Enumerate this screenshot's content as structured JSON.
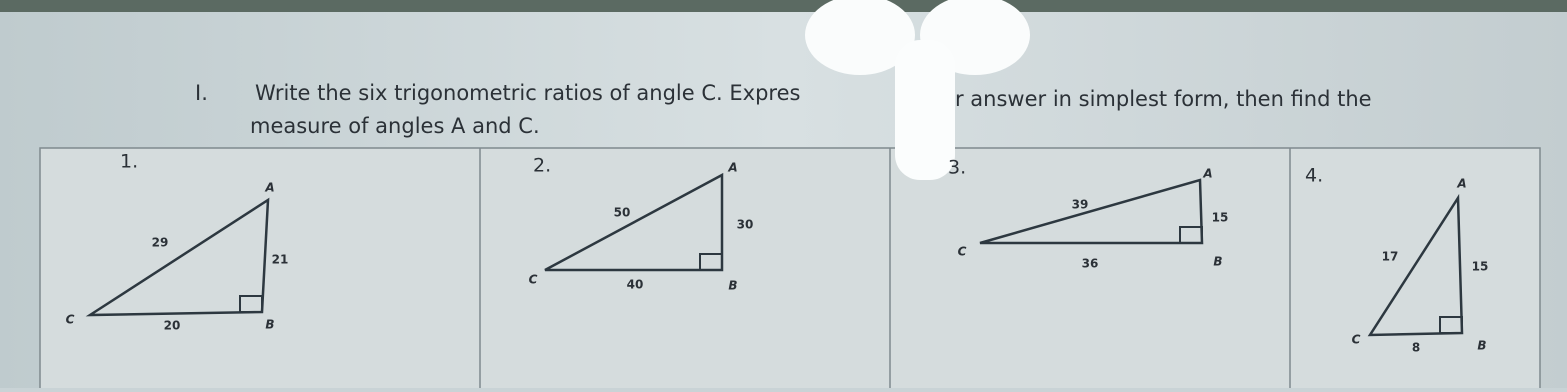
{
  "header": {
    "number": "I.",
    "lines": [
      "Write the six trigonometric ratios of angle C. Expres",
      "r answer in simplest form, then find the",
      "measure of angles A and C."
    ]
  },
  "problems": [
    {
      "label": "1.",
      "vertices": {
        "A": "A",
        "B": "B",
        "C": "C"
      },
      "sides": {
        "AC": 29,
        "AB": 21,
        "BC": 20
      }
    },
    {
      "label": "2.",
      "vertices": {
        "A": "A",
        "B": "B",
        "C": "C"
      },
      "sides": {
        "AC": 50,
        "AB": 30,
        "BC": 40
      }
    },
    {
      "label": "3.",
      "vertices": {
        "A": "A",
        "B": "B",
        "C": "C"
      },
      "sides": {
        "AC": 39,
        "AB": 15,
        "BC": 36
      }
    },
    {
      "label": "4.",
      "vertices": {
        "A": "A",
        "B": "B",
        "C": "C"
      },
      "sides": {
        "AC": 17,
        "AB": 15,
        "BC": 8
      }
    }
  ]
}
